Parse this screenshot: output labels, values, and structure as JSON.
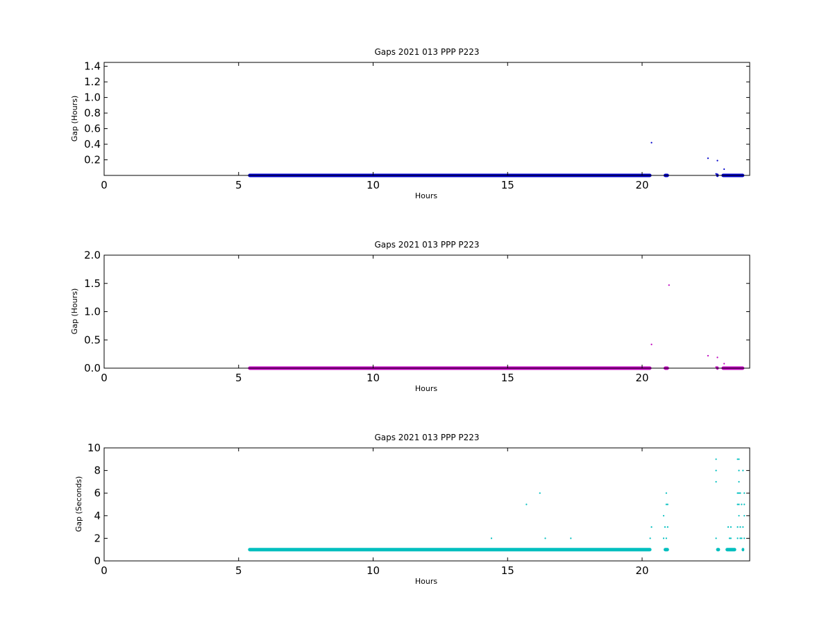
{
  "chart_data": [
    {
      "type": "scatter",
      "title": "Gaps 2021 013 PPP  P223",
      "xlabel": "Hours",
      "ylabel": "Gap (Hours)",
      "xlim": [
        0,
        24
      ],
      "ylim": [
        0,
        1.45
      ],
      "xticks": [
        0,
        5,
        10,
        15,
        20
      ],
      "yticks": [
        0.2,
        0.4,
        0.6,
        0.8,
        1.0,
        1.2,
        1.4
      ],
      "ytick_labels": [
        "0.2",
        "0.4",
        "0.6",
        "0.8",
        "1.0",
        "1.2",
        "1.4"
      ],
      "color": "#0000cc",
      "series": [
        {
          "dense_runs": [
            [
              5.35,
              20.35,
              0.0003
            ],
            [
              20.8,
              21.0,
              0.0003
            ],
            [
              22.75,
              22.85,
              0.001
            ],
            [
              22.95,
              23.8,
              0.0003
            ]
          ],
          "points": [
            [
              20.35,
              0.42
            ],
            [
              22.45,
              0.22
            ],
            [
              22.8,
              0.19
            ],
            [
              23.05,
              0.08
            ],
            [
              22.75,
              0.02
            ],
            [
              22.8,
              0.015
            ],
            [
              23.6,
              0.01
            ]
          ]
        }
      ]
    },
    {
      "type": "scatter",
      "title": "Gaps 2021 013 PPP  P223",
      "xlabel": "Hours",
      "ylabel": "Gap (Hours)",
      "xlim": [
        0,
        24
      ],
      "ylim": [
        0,
        2.0
      ],
      "xticks": [
        0,
        5,
        10,
        15,
        20
      ],
      "yticks": [
        0.0,
        0.5,
        1.0,
        1.5,
        2.0
      ],
      "ytick_labels": [
        "0.0",
        "0.5",
        "1.0",
        "1.5",
        "2.0"
      ],
      "color": "#bf00bf",
      "series": [
        {
          "dense_runs": [
            [
              5.35,
              20.35,
              0.0003
            ],
            [
              20.8,
              21.0,
              0.0003
            ],
            [
              22.75,
              22.85,
              0.001
            ],
            [
              22.95,
              23.8,
              0.0003
            ]
          ],
          "points": [
            [
              21.0,
              1.47
            ],
            [
              20.35,
              0.42
            ],
            [
              22.45,
              0.22
            ],
            [
              22.8,
              0.19
            ],
            [
              23.05,
              0.08
            ],
            [
              22.75,
              0.02
            ],
            [
              23.6,
              0.01
            ]
          ]
        }
      ]
    },
    {
      "type": "scatter",
      "title": "Gaps 2021 013 PPP  P223",
      "xlabel": "Hours",
      "ylabel": "Gap (Seconds)",
      "xlim": [
        0,
        24
      ],
      "ylim": [
        0,
        10
      ],
      "xticks": [
        0,
        5,
        10,
        15,
        20
      ],
      "yticks": [
        0,
        2,
        4,
        6,
        8,
        10
      ],
      "ytick_labels": [
        "0",
        "2",
        "4",
        "6",
        "8",
        "10"
      ],
      "color": "#00bfbf",
      "series": [
        {
          "dense_runs": [
            [
              5.35,
              20.35,
              1
            ],
            [
              20.8,
              21.0,
              1
            ],
            [
              22.75,
              22.9,
              1
            ],
            [
              23.1,
              23.5,
              1
            ],
            [
              23.7,
              23.8,
              1
            ]
          ],
          "points": [
            [
              14.4,
              2
            ],
            [
              15.7,
              5
            ],
            [
              16.2,
              6
            ],
            [
              16.4,
              2
            ],
            [
              17.35,
              2
            ],
            [
              20.3,
              2
            ],
            [
              20.35,
              3
            ],
            [
              20.8,
              4
            ],
            [
              20.85,
              3
            ],
            [
              20.9,
              6
            ],
            [
              20.9,
              5
            ],
            [
              20.95,
              5
            ],
            [
              20.95,
              3
            ],
            [
              20.8,
              2
            ],
            [
              20.9,
              2
            ],
            [
              22.75,
              9
            ],
            [
              22.75,
              8
            ],
            [
              22.75,
              7
            ],
            [
              22.75,
              2
            ],
            [
              23.2,
              3
            ],
            [
              23.25,
              2
            ],
            [
              23.3,
              2
            ],
            [
              23.3,
              3
            ],
            [
              23.55,
              9
            ],
            [
              23.6,
              9
            ],
            [
              23.6,
              8
            ],
            [
              23.6,
              7
            ],
            [
              23.55,
              6
            ],
            [
              23.6,
              6
            ],
            [
              23.65,
              6
            ],
            [
              23.55,
              5
            ],
            [
              23.6,
              5
            ],
            [
              23.7,
              5
            ],
            [
              23.6,
              4
            ],
            [
              23.55,
              3
            ],
            [
              23.65,
              3
            ],
            [
              23.75,
              3
            ],
            [
              23.55,
              2
            ],
            [
              23.65,
              2
            ],
            [
              23.7,
              2
            ],
            [
              23.8,
              2
            ],
            [
              23.75,
              8
            ],
            [
              23.8,
              6
            ],
            [
              23.8,
              5
            ],
            [
              23.8,
              4
            ]
          ]
        }
      ]
    }
  ]
}
